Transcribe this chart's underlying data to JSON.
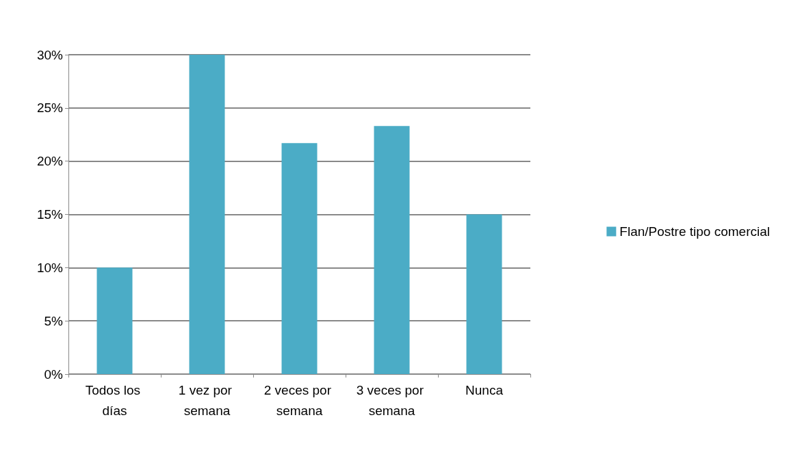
{
  "chart_data": {
    "type": "bar",
    "categories": [
      "Todos los días",
      "1 vez por semana",
      "2 veces por semana",
      "3 veces por semana",
      "Nunca"
    ],
    "series": [
      {
        "name": "Flan/Postre tipo comercial",
        "color": "#4bacc6",
        "values": [
          10,
          30,
          21.7,
          23.3,
          15
        ]
      }
    ],
    "ylim": [
      0,
      30
    ],
    "yticks": [
      {
        "value": 0,
        "label": "0%"
      },
      {
        "value": 5,
        "label": "5%"
      },
      {
        "value": 10,
        "label": "10%"
      },
      {
        "value": 15,
        "label": "15%"
      },
      {
        "value": 20,
        "label": "20%"
      },
      {
        "value": 25,
        "label": "25%"
      },
      {
        "value": 30,
        "label": "30%"
      }
    ],
    "grid": "y",
    "legend": "right"
  }
}
